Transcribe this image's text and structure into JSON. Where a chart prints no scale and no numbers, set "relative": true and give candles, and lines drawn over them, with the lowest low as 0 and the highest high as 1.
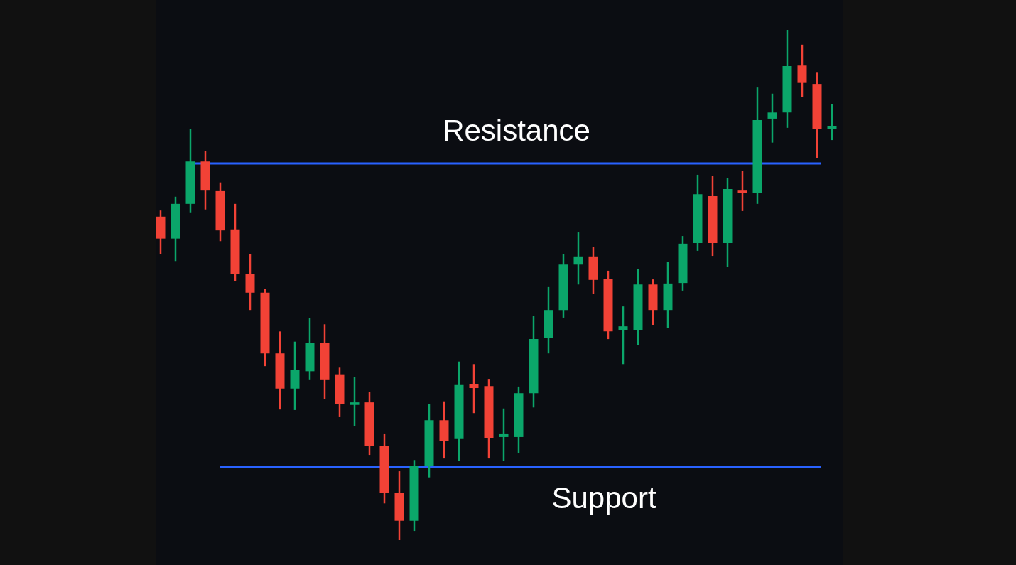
{
  "chart_data": {
    "type": "candlestick",
    "relative": true,
    "categories": [
      null,
      null,
      null,
      null,
      null,
      null,
      null,
      null,
      null,
      null,
      null,
      null,
      null,
      null,
      null,
      null,
      null,
      null,
      null,
      null,
      null,
      null,
      null,
      null,
      null,
      null,
      null,
      null,
      null,
      null,
      null,
      null,
      null,
      null,
      null,
      null,
      null,
      null,
      null,
      null,
      null,
      null,
      null,
      null,
      null,
      null
    ],
    "ohlc": [
      [
        0.634,
        0.646,
        0.56,
        0.591
      ],
      [
        0.591,
        0.673,
        0.547,
        0.659
      ],
      [
        0.659,
        0.805,
        0.641,
        0.742
      ],
      [
        0.742,
        0.762,
        0.648,
        0.685
      ],
      [
        0.684,
        0.701,
        0.586,
        0.607
      ],
      [
        0.609,
        0.659,
        0.507,
        0.522
      ],
      [
        0.521,
        0.561,
        0.451,
        0.485
      ],
      [
        0.485,
        0.493,
        0.341,
        0.366
      ],
      [
        0.366,
        0.409,
        0.256,
        0.297
      ],
      [
        0.297,
        0.389,
        0.255,
        0.333
      ],
      [
        0.331,
        0.435,
        0.315,
        0.386
      ],
      [
        0.386,
        0.423,
        0.276,
        0.315
      ],
      [
        0.325,
        0.338,
        0.241,
        0.266
      ],
      [
        0.265,
        0.32,
        0.224,
        0.27
      ],
      [
        0.27,
        0.29,
        0.167,
        0.184
      ],
      [
        0.184,
        0.209,
        0.072,
        0.092
      ],
      [
        0.092,
        0.135,
        0,
        0.038
      ],
      [
        0.038,
        0.157,
        0.018,
        0.145
      ],
      [
        0.145,
        0.267,
        0.123,
        0.235
      ],
      [
        0.235,
        0.272,
        0.16,
        0.194
      ],
      [
        0.198,
        0.35,
        0.156,
        0.304
      ],
      [
        0.305,
        0.345,
        0.249,
        0.298
      ],
      [
        0.302,
        0.316,
        0.16,
        0.199
      ],
      [
        0.202,
        0.258,
        0.155,
        0.209
      ],
      [
        0.202,
        0.301,
        0.17,
        0.288
      ],
      [
        0.288,
        0.439,
        0.26,
        0.394
      ],
      [
        0.396,
        0.496,
        0.366,
        0.451
      ],
      [
        0.451,
        0.561,
        0.436,
        0.54
      ],
      [
        0.54,
        0.603,
        0.501,
        0.556
      ],
      [
        0.556,
        0.574,
        0.483,
        0.51
      ],
      [
        0.511,
        0.528,
        0.394,
        0.409
      ],
      [
        0.411,
        0.458,
        0.345,
        0.419
      ],
      [
        0.412,
        0.532,
        0.382,
        0.501
      ],
      [
        0.501,
        0.511,
        0.422,
        0.451
      ],
      [
        0.451,
        0.545,
        0.415,
        0.503
      ],
      [
        0.504,
        0.596,
        0.489,
        0.581
      ],
      [
        0.582,
        0.716,
        0.567,
        0.678
      ],
      [
        0.674,
        0.714,
        0.557,
        0.582
      ],
      [
        0.582,
        0.709,
        0.536,
        0.688
      ],
      [
        0.685,
        0.723,
        0.645,
        0.68
      ],
      [
        0.68,
        0.887,
        0.659,
        0.823
      ],
      [
        0.826,
        0.875,
        0.779,
        0.838
      ],
      [
        0.838,
        1,
        0.808,
        0.929
      ],
      [
        0.93,
        0.971,
        0.868,
        0.896
      ],
      [
        0.894,
        0.916,
        0.749,
        0.806
      ],
      [
        0.805,
        0.854,
        0.784,
        0.812
      ]
    ],
    "colors": [
      "#f24236",
      "#0ba66a",
      "#0ba66a",
      "#f24236",
      "#f24236",
      "#f24236",
      "#f24236",
      "#f24236",
      "#f24236",
      "#0ba66a",
      "#0ba66a",
      "#f24236",
      "#f24236",
      "#0ba66a",
      "#f24236",
      "#f24236",
      "#f24236",
      "#0ba66a",
      "#0ba66a",
      "#f24236",
      "#0ba66a",
      "#f24236",
      "#f24236",
      "#0ba66a",
      "#0ba66a",
      "#0ba66a",
      "#0ba66a",
      "#0ba66a",
      "#0ba66a",
      "#f24236",
      "#f24236",
      "#0ba66a",
      "#0ba66a",
      "#f24236",
      "#0ba66a",
      "#0ba66a",
      "#0ba66a",
      "#f24236",
      "#0ba66a",
      "#f24236",
      "#0ba66a",
      "#0ba66a",
      "#0ba66a",
      "#f24236",
      "#f24236",
      "#0ba66a"
    ],
    "ref_lines": [
      {
        "axis": "y",
        "value": 0.738,
        "label": "Resistance",
        "color": "#2962ff"
      },
      {
        "axis": "y",
        "value": 0.143,
        "label": "Support",
        "color": "#2962ff"
      }
    ]
  }
}
